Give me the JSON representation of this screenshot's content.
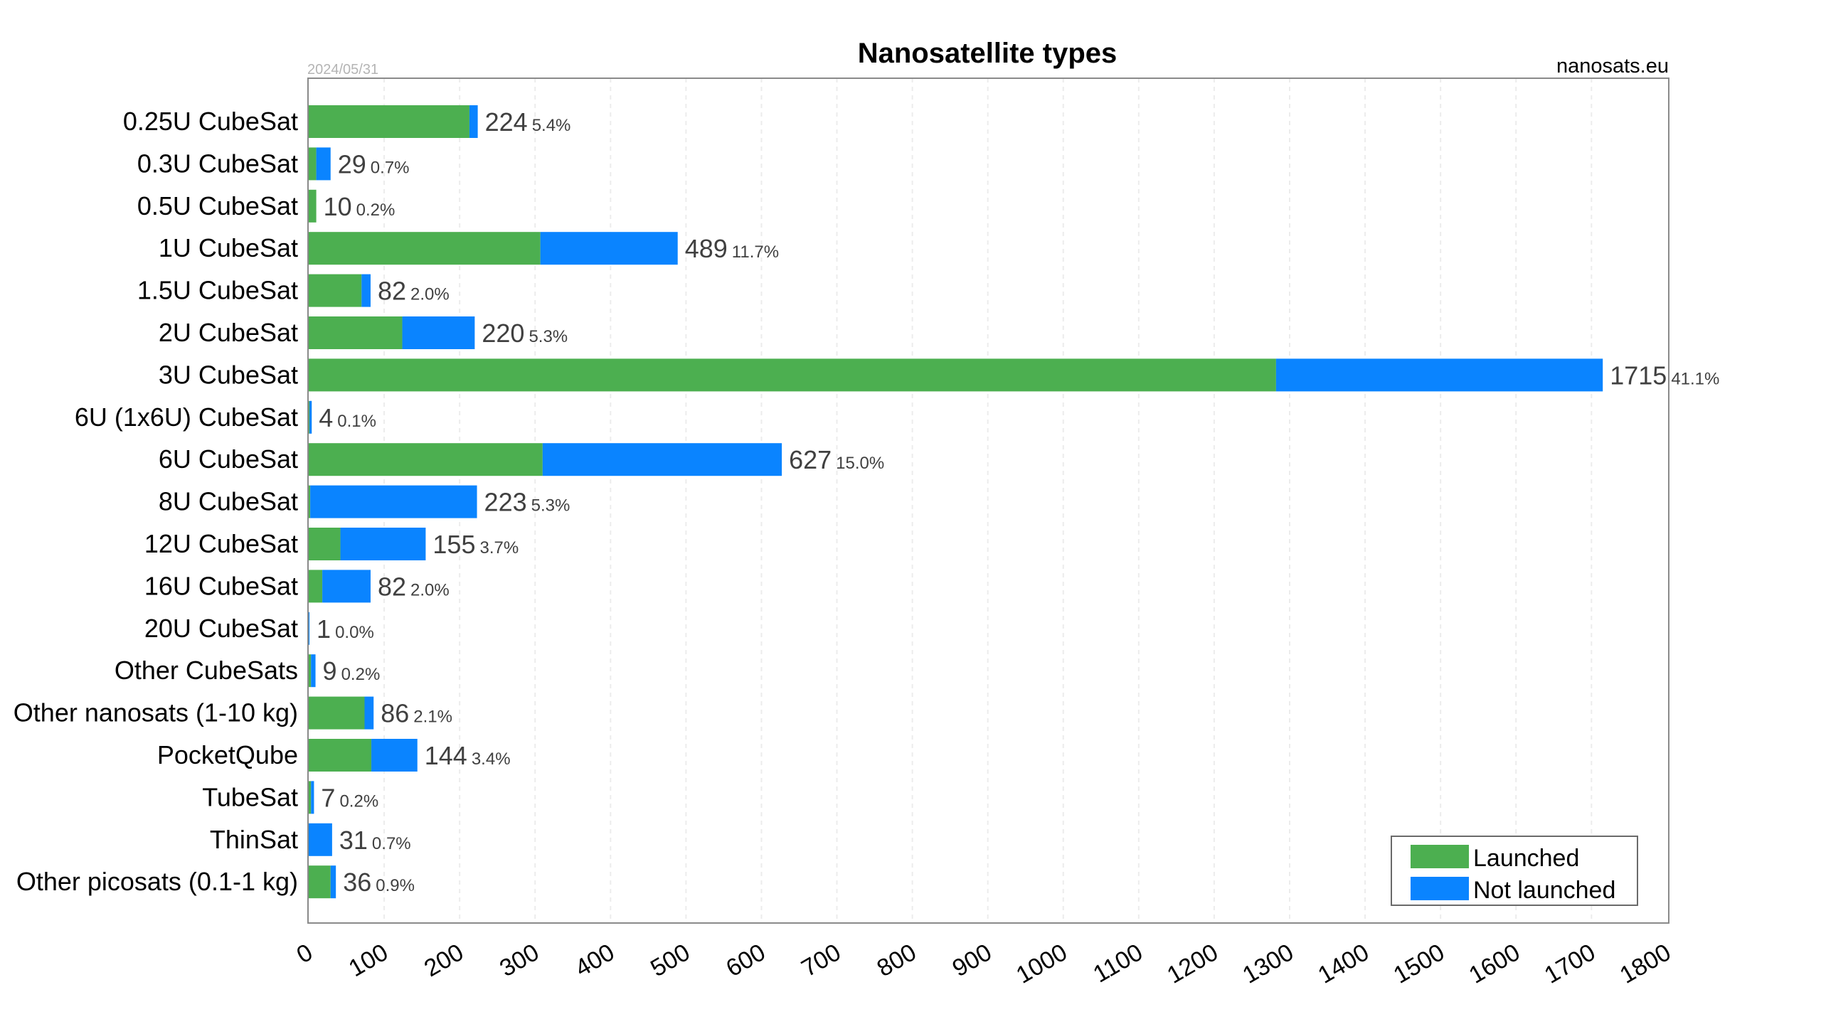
{
  "chart_data": {
    "type": "bar",
    "orientation": "horizontal",
    "stacked": true,
    "title": "Nanosatellite types",
    "date": "2024/05/31",
    "source": "nanosats.eu",
    "xlim": [
      0,
      1800
    ],
    "xticks": [
      0,
      100,
      200,
      300,
      400,
      500,
      600,
      700,
      800,
      900,
      1000,
      1100,
      1200,
      1300,
      1400,
      1500,
      1600,
      1700,
      1800
    ],
    "grid": "vertical",
    "legend_position": "bottom-right",
    "categories": [
      "0.25U CubeSat",
      "0.3U CubeSat",
      "0.5U CubeSat",
      "1U CubeSat",
      "1.5U CubeSat",
      "2U CubeSat",
      "3U CubeSat",
      "6U (1x6U) CubeSat",
      "6U CubeSat",
      "8U CubeSat",
      "12U CubeSat",
      "16U CubeSat",
      "20U CubeSat",
      "Other CubeSats",
      "Other nanosats (1-10 kg)",
      "PocketQube",
      "TubeSat",
      "ThinSat",
      "Other picosats (0.1-1 kg)"
    ],
    "series": [
      {
        "name": "Launched",
        "color": "#4CAF50",
        "values": [
          213,
          10,
          10,
          307,
          70,
          124,
          1282,
          1,
          310,
          2,
          42,
          18,
          0,
          3,
          74,
          83,
          3,
          0,
          29
        ]
      },
      {
        "name": "Not launched",
        "color": "#0A84FF",
        "values": [
          11,
          19,
          0,
          182,
          12,
          96,
          433,
          3,
          317,
          221,
          113,
          64,
          1,
          6,
          12,
          61,
          4,
          31,
          7
        ]
      }
    ],
    "totals": [
      "224",
      "29",
      "10",
      "489",
      "82",
      "220",
      "1715",
      "4",
      "627",
      "223",
      "155",
      "82",
      "1",
      "9",
      "86",
      "144",
      "7",
      "31",
      "36"
    ],
    "percentages": [
      "5.4%",
      "0.7%",
      "0.2%",
      "11.7%",
      "2.0%",
      "5.3%",
      "41.1%",
      "0.1%",
      "15.0%",
      "5.3%",
      "3.7%",
      "2.0%",
      "0.0%",
      "0.2%",
      "2.1%",
      "3.4%",
      "0.2%",
      "0.7%",
      "0.9%"
    ]
  }
}
